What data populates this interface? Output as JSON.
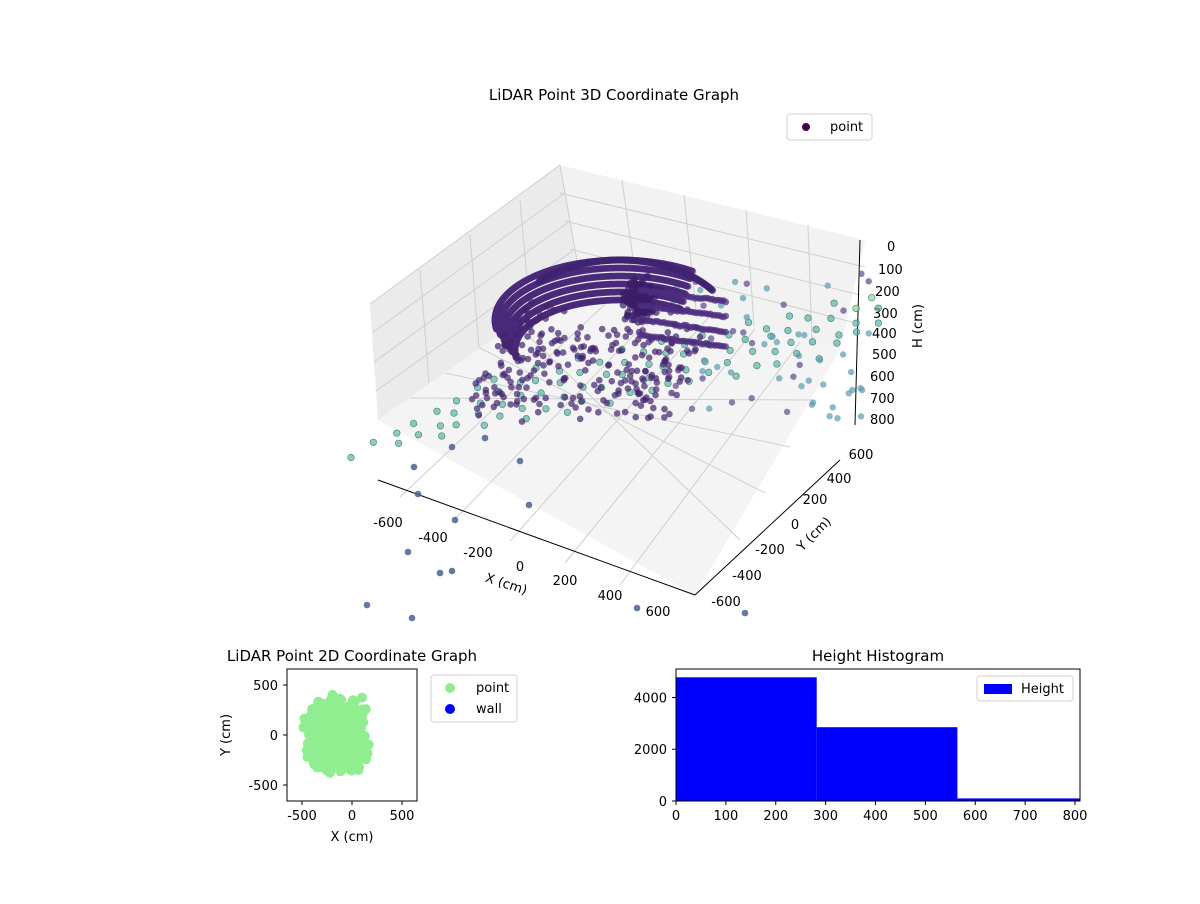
{
  "chart_data": [
    {
      "type": "scatter",
      "projection": "3d",
      "title": "LiDAR Point 3D Coordinate Graph",
      "xlabel": "X (cm)",
      "ylabel": "Y (cm)",
      "zlabel": "H (cm)",
      "xlim": [
        -700,
        700
      ],
      "ylim": [
        -700,
        700
      ],
      "zlim": [
        800,
        0
      ],
      "z_inverted": true,
      "grid": true,
      "legend": {
        "placement": "top-right",
        "entries": [
          "point"
        ]
      },
      "colormap": "viridis",
      "xticks": [
        "-600",
        "-400",
        "-200",
        "0",
        "200",
        "400",
        "600"
      ],
      "yticks": [
        "-600",
        "-400",
        "-200",
        "0",
        "200",
        "400",
        "600"
      ],
      "zticks": [
        "0",
        "100",
        "200",
        "300",
        "400",
        "500",
        "600",
        "700",
        "800"
      ],
      "series": [
        {
          "name": "point",
          "color": "#440154",
          "note_points": [
            [
              -560,
              -520,
              40
            ],
            [
              -620,
              -300,
              120
            ],
            [
              -300,
              -150,
              250
            ],
            [
              0,
              100,
              300
            ],
            [
              300,
              300,
              260
            ],
            [
              500,
              500,
              210
            ],
            [
              650,
              600,
              200
            ],
            [
              -650,
              600,
              500
            ],
            [
              200,
              -600,
              650
            ],
            [
              600,
              -650,
              700
            ],
            [
              -300,
              400,
              600
            ],
            [
              100,
              550,
              780
            ]
          ]
        }
      ]
    },
    {
      "type": "scatter",
      "title": "LiDAR Point 2D Coordinate Graph",
      "xlabel": "X (cm)",
      "ylabel": "Y (cm)",
      "xlim": [
        -650,
        650
      ],
      "ylim": [
        -650,
        650
      ],
      "xticks": [
        "-500",
        "0",
        "500"
      ],
      "yticks": [
        "500",
        "0",
        "-500"
      ],
      "legend": {
        "placement": "outside-right",
        "entries": [
          "point",
          "wall"
        ]
      },
      "series": [
        {
          "name": "point",
          "color": "#90ee90",
          "distribution": "dense cloud centred near (-150, 0)"
        },
        {
          "name": "wall",
          "color": "#0000ff",
          "values": []
        }
      ]
    },
    {
      "type": "bar",
      "title": "Height Histogram",
      "xlabel": "",
      "ylabel": "",
      "xlim": [
        0,
        810
      ],
      "ylim": [
        0,
        5100
      ],
      "xticks": [
        "0",
        "100",
        "200",
        "300",
        "400",
        "500",
        "600",
        "700",
        "800"
      ],
      "yticks": [
        "0",
        "2000",
        "4000"
      ],
      "legend": {
        "placement": "top-right",
        "entries": [
          "Height"
        ]
      },
      "bins": [
        {
          "from": 0,
          "to": 282,
          "count": 4780
        },
        {
          "from": 282,
          "to": 564,
          "count": 2850
        },
        {
          "from": 564,
          "to": 810,
          "count": 100
        }
      ],
      "series": [
        {
          "name": "Height",
          "color": "#0000ff"
        }
      ]
    }
  ]
}
